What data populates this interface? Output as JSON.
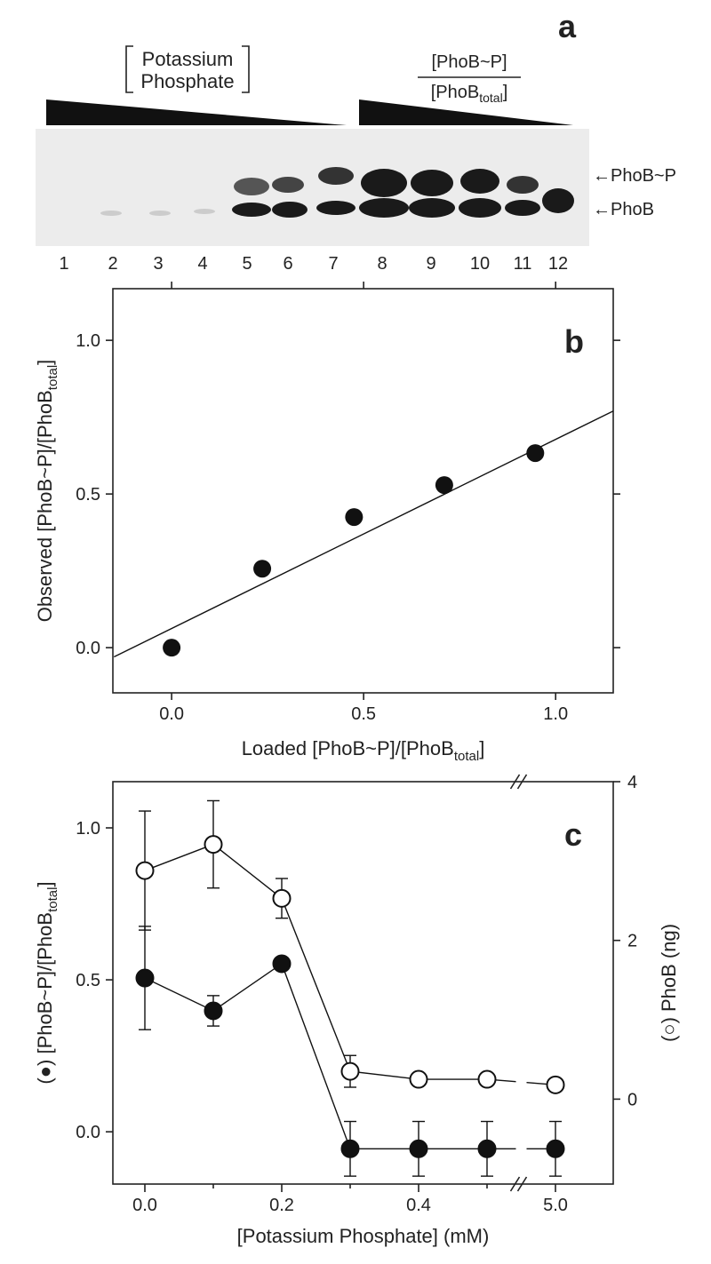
{
  "gel": {
    "panel": "a",
    "bracket_top": "Potassium",
    "bracket_bottom": "Phosphate",
    "ratio_top": "[PhoB~P]",
    "ratio_bottom": "[PhoB",
    "ratio_sub": "total",
    "ratio_end": "]",
    "lanes": [
      "1",
      "2",
      "3",
      "4",
      "5",
      "6",
      "7",
      "8",
      "9",
      "10",
      "11",
      "12"
    ],
    "band_labels": [
      "←PhoB~P",
      "←PhoB"
    ]
  },
  "chart_data": [
    {
      "type": "scatter",
      "panel": "b",
      "xlabel": "Loaded [PhoB~P]/[PhoB",
      "xlabel_sub": "total",
      "xlabel_end": "]",
      "ylabel": "Observed [PhoB~P]/[PhoB",
      "ylabel_sub": "total",
      "ylabel_end": "]",
      "x": [
        0,
        0.236,
        0.475,
        0.71,
        0.947
      ],
      "values": [
        0,
        0.257,
        0.425,
        0.529,
        0.633
      ],
      "color": "#111111",
      "fit_x": [
        -0.15,
        1.15
      ],
      "fit_y": [
        -0.03,
        0.77
      ],
      "xlim": [
        -0.153,
        1.15
      ],
      "ylim": [
        -0.147,
        1.168
      ],
      "xticks": [
        {
          "value": 0,
          "label": "0.0"
        },
        {
          "value": 0.5,
          "label": "0.5"
        },
        {
          "value": 1,
          "label": "1.0"
        }
      ],
      "yticks": [
        {
          "value": 0,
          "label": "0.0"
        },
        {
          "value": 0.5,
          "label": "0.5"
        },
        {
          "value": 1,
          "label": "1.0"
        }
      ]
    },
    {
      "type": "line",
      "panel": "c",
      "xlabel": "[Potassium Phosphate] (mM)",
      "ylabel": "(●) [PhoB~P]/[PhoB",
      "ylabel_sub": "total",
      "ylabel_end": "]",
      "y2label": "(○) PhoB (ng)",
      "categories": [
        "0.0",
        null,
        "0.2",
        null,
        "0.4",
        null,
        "5.0"
      ],
      "series": [
        {
          "color": "#111111",
          "marker": "filled",
          "values": [
            0.506,
            0.398,
            0.553,
            -0.056,
            -0.056,
            -0.056,
            -0.056
          ],
          "errors": [
            0.17,
            0.05,
            0.02,
            0.09,
            0.09,
            0.09,
            0.09
          ]
        },
        {
          "color": "#111111",
          "marker": "open",
          "axis": "y2",
          "values": [
            2.88,
            3.21,
            2.53,
            0.35,
            0.25,
            0.25,
            0.18
          ],
          "errors": [
            0.75,
            0.55,
            0.25,
            0.2,
            0.05,
            0.05,
            0.05
          ]
        }
      ],
      "ylim": [
        -0.172,
        1.152
      ],
      "y2lim": [
        -1.07,
        4
      ],
      "yticks": [
        {
          "value": 0,
          "label": "0.0"
        },
        {
          "value": 0.5,
          "label": "0.5"
        },
        {
          "value": 1,
          "label": "1.0"
        }
      ],
      "y2ticks": [
        0,
        2,
        4
      ]
    }
  ]
}
